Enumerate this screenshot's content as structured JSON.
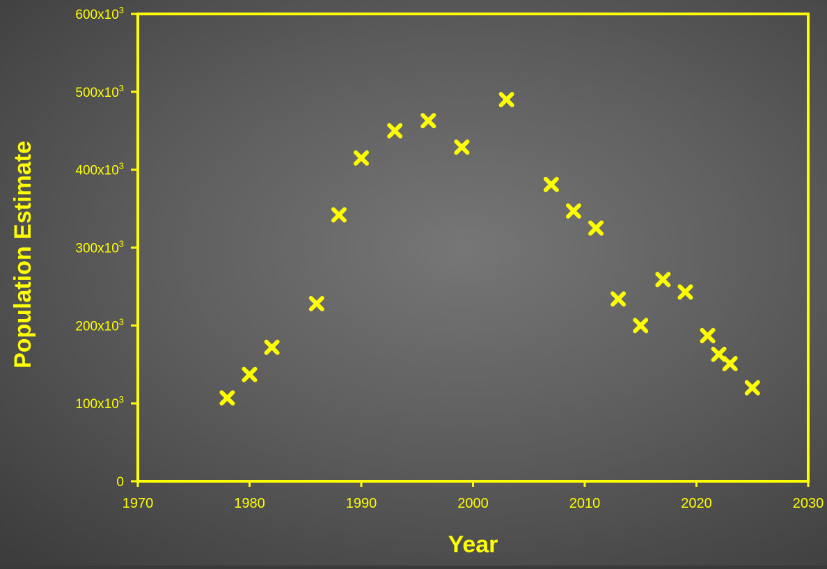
{
  "chart_data": {
    "type": "scatter",
    "title": "",
    "xlabel": "Year",
    "ylabel": "Population Estimate",
    "xlim": [
      1970,
      2030
    ],
    "ylim": [
      0,
      600000
    ],
    "grid": false,
    "legend": "none",
    "x_ticks": [
      {
        "value": 1970,
        "label": "1970"
      },
      {
        "value": 1980,
        "label": "1980"
      },
      {
        "value": 1990,
        "label": "1990"
      },
      {
        "value": 2000,
        "label": "2000"
      },
      {
        "value": 2010,
        "label": "2010"
      },
      {
        "value": 2020,
        "label": "2020"
      },
      {
        "value": 2030,
        "label": "2030"
      }
    ],
    "y_ticks": [
      {
        "value": 0,
        "label": "0",
        "sup": ""
      },
      {
        "value": 100000,
        "label": "100x10",
        "sup": "3"
      },
      {
        "value": 200000,
        "label": "200x10",
        "sup": "3"
      },
      {
        "value": 300000,
        "label": "300x10",
        "sup": "3"
      },
      {
        "value": 400000,
        "label": "400x10",
        "sup": "3"
      },
      {
        "value": 500000,
        "label": "500x10",
        "sup": "3"
      },
      {
        "value": 600000,
        "label": "600x10",
        "sup": "3"
      }
    ],
    "series": [
      {
        "marker": "x",
        "color": "#ffff00",
        "points": [
          [
            1978,
            107000
          ],
          [
            1980,
            137000
          ],
          [
            1982,
            172000
          ],
          [
            1986,
            228000
          ],
          [
            1988,
            342000
          ],
          [
            1990,
            415000
          ],
          [
            1993,
            450000
          ],
          [
            1996,
            463000
          ],
          [
            1999,
            429000
          ],
          [
            2003,
            490000
          ],
          [
            2007,
            381000
          ],
          [
            2009,
            347000
          ],
          [
            2011,
            325000
          ],
          [
            2013,
            234000
          ],
          [
            2015,
            200000
          ],
          [
            2017,
            259000
          ],
          [
            2019,
            243000
          ],
          [
            2021,
            187000
          ],
          [
            2022,
            163000
          ],
          [
            2023,
            151000
          ],
          [
            2025,
            120000
          ]
        ]
      }
    ],
    "colors": {
      "axis": "#ffff00",
      "text": "#ffff00",
      "background": "#5e5e5e"
    }
  }
}
